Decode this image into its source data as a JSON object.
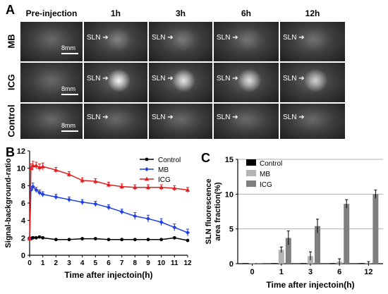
{
  "panel_a": {
    "letter": "A",
    "columns": [
      "Pre-injection",
      "1h",
      "3h",
      "6h",
      "12h"
    ],
    "rows": [
      {
        "label": "MB",
        "sln": [
          "",
          "SLN",
          "SLN",
          "SLN",
          "SLN"
        ],
        "scale": "8mm",
        "glow": [
          0,
          0.18,
          0.12,
          0.08,
          0.06
        ]
      },
      {
        "label": "ICG",
        "sln": [
          "",
          "SLN",
          "SLN",
          "SLN",
          "SLN"
        ],
        "scale": "8mm",
        "glow": [
          0,
          0.95,
          0.85,
          0.8,
          0.7
        ]
      },
      {
        "label": "Control",
        "sln": [
          "",
          "SLN",
          "SLN",
          "SLN",
          "SLN"
        ],
        "scale": "8mm",
        "glow": [
          0,
          0,
          0,
          0,
          0
        ]
      }
    ]
  },
  "chart_data": [
    {
      "panel": "B",
      "type": "line",
      "xlabel": "Time after injectoin(h)",
      "ylabel": "Signal-background-ratio",
      "xlim": [
        0,
        12
      ],
      "ylim": [
        0,
        12
      ],
      "xticks": [
        0,
        1,
        2,
        3,
        4,
        5,
        6,
        7,
        8,
        9,
        10,
        11,
        12
      ],
      "yticks": [
        0,
        2,
        4,
        6,
        8,
        10,
        12
      ],
      "legend_position": "top-right",
      "series": [
        {
          "name": "Control",
          "color": "#000000",
          "marker": "circle",
          "x": [
            0,
            0.1,
            0.25,
            0.5,
            0.75,
            1,
            2,
            3,
            4,
            5,
            6,
            7,
            8,
            9,
            10,
            11,
            12
          ],
          "y": [
            1.9,
            1.9,
            2.0,
            2.0,
            2.1,
            2.0,
            1.8,
            1.8,
            1.9,
            1.9,
            1.8,
            1.8,
            1.8,
            1.8,
            1.8,
            2.0,
            1.7
          ],
          "err": [
            0.2,
            0.15,
            0.15,
            0.1,
            0.1,
            0.1,
            0.1,
            0.1,
            0.1,
            0.1,
            0.1,
            0.1,
            0.1,
            0.1,
            0.1,
            0.1,
            0.1
          ]
        },
        {
          "name": "MB",
          "color": "#1f3fe0",
          "marker": "diamond",
          "x": [
            0,
            0.1,
            0.25,
            0.5,
            0.75,
            1,
            2,
            3,
            4,
            5,
            6,
            7,
            8,
            9,
            10,
            11,
            12
          ],
          "y": [
            1.9,
            7.5,
            7.9,
            7.5,
            7.2,
            7.0,
            6.7,
            6.4,
            6.1,
            5.9,
            5.5,
            5.0,
            4.5,
            4.2,
            3.8,
            3.2,
            2.6
          ],
          "err": [
            0.2,
            0.4,
            0.4,
            0.3,
            0.3,
            0.3,
            0.3,
            0.3,
            0.3,
            0.3,
            0.3,
            0.3,
            0.4,
            0.4,
            0.4,
            0.4,
            0.4
          ]
        },
        {
          "name": "ICG",
          "color": "#e02020",
          "marker": "triangle",
          "x": [
            0,
            0.1,
            0.25,
            0.5,
            0.75,
            1,
            2,
            3,
            4,
            5,
            6,
            7,
            8,
            9,
            10,
            11,
            12
          ],
          "y": [
            1.9,
            10.0,
            10.3,
            10.3,
            10.1,
            10.2,
            9.8,
            9.3,
            8.6,
            8.5,
            8.1,
            7.9,
            7.8,
            7.8,
            7.8,
            7.7,
            7.5
          ],
          "err": [
            0.2,
            0.5,
            0.5,
            0.4,
            0.4,
            0.4,
            0.3,
            0.3,
            0.3,
            0.3,
            0.3,
            0.3,
            0.3,
            0.3,
            0.3,
            0.3,
            0.3
          ]
        }
      ]
    },
    {
      "panel": "C",
      "type": "bar",
      "xlabel": "Time after injectoin(h)",
      "ylabel": "SLN fluorescence area fraction(%)",
      "categories": [
        "0",
        "1",
        "3",
        "6",
        "12"
      ],
      "ylim": [
        0,
        15
      ],
      "yticks": [
        0,
        5,
        10,
        15
      ],
      "legend_position": "top-left",
      "series": [
        {
          "name": "Control",
          "color": "#000000",
          "values": [
            0,
            0,
            0,
            0,
            0
          ],
          "err": [
            0,
            0,
            0,
            0,
            0
          ]
        },
        {
          "name": "MB",
          "color": "#b4b4b4",
          "values": [
            0,
            2.0,
            1.1,
            0.3,
            0.1
          ],
          "err": [
            0,
            0.4,
            0.6,
            0.4,
            0.2
          ]
        },
        {
          "name": "ICG",
          "color": "#7f7f7f",
          "values": [
            0,
            3.7,
            5.4,
            8.6,
            10.0
          ],
          "err": [
            0,
            1.0,
            1.0,
            0.6,
            0.6
          ]
        }
      ]
    }
  ],
  "panel_b_letter": "B",
  "panel_c_letter": "C"
}
